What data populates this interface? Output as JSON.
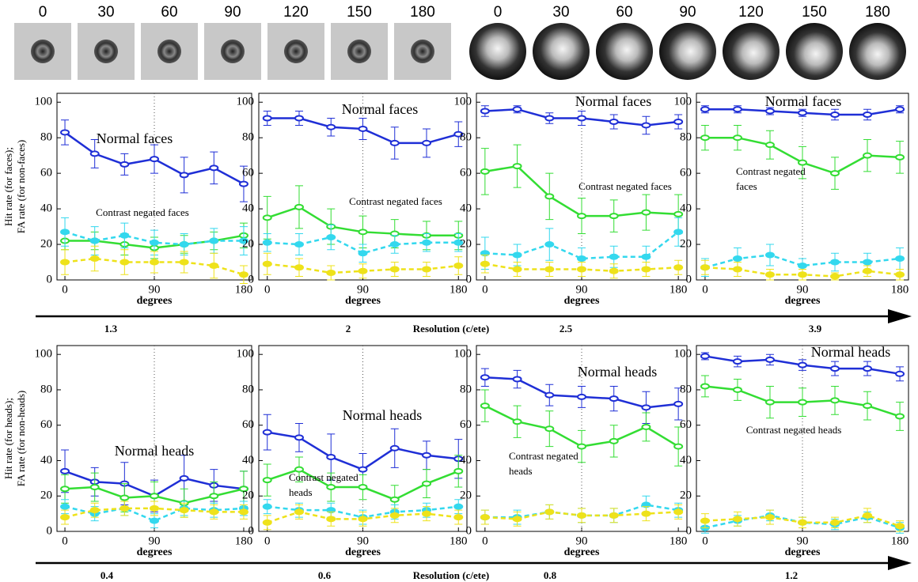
{
  "stimulus_rows": [
    [
      0,
      30,
      60,
      90,
      120,
      150,
      180
    ],
    [
      0,
      30,
      60,
      90,
      120,
      150,
      180
    ]
  ],
  "resolution_axes": [
    {
      "label": "Resolution (c/ete)",
      "values": [
        1.3,
        2,
        2.5,
        3.9
      ]
    },
    {
      "label": "Resolution (c/ete)",
      "values": [
        0.4,
        0.6,
        0.8,
        1.2
      ]
    }
  ],
  "chart_data": [
    {
      "type": "line",
      "ylabel": [
        "Hit rate (for faces);",
        "FA rate (for non-faces)"
      ],
      "xlabel": "degrees",
      "annotations": [
        [
          "Normal faces"
        ],
        [
          "Contrast negated faces"
        ]
      ],
      "x": [
        0,
        30,
        60,
        90,
        120,
        150,
        180
      ],
      "xlim": [
        -8,
        188
      ],
      "ylim": [
        0,
        105
      ],
      "xticks": [
        0,
        90,
        180
      ],
      "yticks": [
        0,
        20,
        40,
        60,
        80,
        100
      ],
      "grid": true,
      "series": [
        {
          "color": "#1f2fd6",
          "dash": false,
          "values": [
            83,
            71,
            65,
            68,
            59,
            63,
            54
          ],
          "errors": [
            7,
            8,
            6,
            8,
            10,
            9,
            10
          ]
        },
        {
          "color": "#33dd33",
          "dash": false,
          "values": [
            22,
            22,
            20,
            18,
            20,
            22,
            25
          ],
          "errors": [
            5,
            5,
            6,
            6,
            5,
            5,
            7
          ]
        },
        {
          "color": "#33d8ee",
          "dash": true,
          "values": [
            27,
            22,
            25,
            21,
            20,
            22,
            22
          ],
          "errors": [
            8,
            8,
            7,
            7,
            6,
            7,
            8
          ]
        },
        {
          "color": "#eee21a",
          "dash": true,
          "values": [
            10,
            12,
            10,
            10,
            10,
            8,
            3
          ],
          "errors": [
            7,
            7,
            7,
            6,
            6,
            7,
            5
          ]
        }
      ]
    },
    {
      "type": "line",
      "xlabel": "degrees",
      "annotations": [
        [
          "Normal faces"
        ],
        [
          "Contrast negated faces"
        ]
      ],
      "x": [
        0,
        30,
        60,
        90,
        120,
        150,
        180
      ],
      "xlim": [
        -8,
        188
      ],
      "ylim": [
        0,
        105
      ],
      "xticks": [
        0,
        90,
        180
      ],
      "yticks": [
        0,
        20,
        40,
        60,
        80,
        100
      ],
      "grid": true,
      "series": [
        {
          "color": "#1f2fd6",
          "dash": false,
          "values": [
            91,
            91,
            86,
            85,
            77,
            77,
            82
          ],
          "errors": [
            4,
            4,
            5,
            6,
            9,
            8,
            7
          ]
        },
        {
          "color": "#33dd33",
          "dash": false,
          "values": [
            35,
            41,
            30,
            27,
            26,
            25,
            25
          ],
          "errors": [
            12,
            12,
            10,
            9,
            8,
            8,
            8
          ]
        },
        {
          "color": "#33d8ee",
          "dash": true,
          "values": [
            21,
            20,
            24,
            15,
            20,
            21,
            21
          ],
          "errors": [
            5,
            6,
            7,
            5,
            5,
            5,
            5
          ]
        },
        {
          "color": "#eee21a",
          "dash": true,
          "values": [
            9,
            7,
            4,
            5,
            6,
            6,
            8
          ],
          "errors": [
            6,
            5,
            4,
            4,
            4,
            4,
            5
          ]
        }
      ]
    },
    {
      "type": "line",
      "xlabel": "degrees",
      "annotations": [
        [
          "Normal faces"
        ],
        [
          "Contrast negated faces"
        ]
      ],
      "x": [
        0,
        30,
        60,
        90,
        120,
        150,
        180
      ],
      "xlim": [
        -8,
        188
      ],
      "ylim": [
        0,
        105
      ],
      "xticks": [
        0,
        90,
        180
      ],
      "yticks": [
        0,
        20,
        40,
        60,
        80,
        100
      ],
      "grid": true,
      "series": [
        {
          "color": "#1f2fd6",
          "dash": false,
          "values": [
            95,
            96,
            91,
            91,
            89,
            87,
            89
          ],
          "errors": [
            3,
            2,
            3,
            4,
            4,
            5,
            4
          ]
        },
        {
          "color": "#33dd33",
          "dash": false,
          "values": [
            61,
            64,
            47,
            36,
            36,
            38,
            37
          ],
          "errors": [
            13,
            12,
            13,
            10,
            9,
            10,
            11
          ]
        },
        {
          "color": "#33d8ee",
          "dash": true,
          "values": [
            15,
            14,
            20,
            12,
            13,
            13,
            27
          ],
          "errors": [
            9,
            6,
            9,
            6,
            6,
            6,
            8
          ]
        },
        {
          "color": "#eee21a",
          "dash": true,
          "values": [
            9,
            6,
            6,
            6,
            5,
            6,
            7
          ],
          "errors": [
            5,
            4,
            4,
            4,
            4,
            4,
            4
          ]
        }
      ]
    },
    {
      "type": "line",
      "xlabel": "degrees",
      "annotations": [
        [
          "Normal faces"
        ],
        [
          "Contrast negated",
          "faces"
        ]
      ],
      "x": [
        0,
        30,
        60,
        90,
        120,
        150,
        180
      ],
      "xlim": [
        -8,
        188
      ],
      "ylim": [
        0,
        105
      ],
      "xticks": [
        0,
        90,
        180
      ],
      "yticks": [
        0,
        20,
        40,
        60,
        80,
        100
      ],
      "grid": true,
      "series": [
        {
          "color": "#1f2fd6",
          "dash": false,
          "values": [
            96,
            96,
            95,
            94,
            93,
            93,
            96
          ],
          "errors": [
            2,
            2,
            2,
            2,
            3,
            3,
            2
          ]
        },
        {
          "color": "#33dd33",
          "dash": false,
          "values": [
            80,
            80,
            76,
            66,
            60,
            70,
            69
          ],
          "errors": [
            7,
            7,
            8,
            9,
            9,
            9,
            9
          ]
        },
        {
          "color": "#33d8ee",
          "dash": true,
          "values": [
            7,
            12,
            14,
            8,
            10,
            10,
            12
          ],
          "errors": [
            5,
            6,
            6,
            4,
            5,
            5,
            6
          ]
        },
        {
          "color": "#eee21a",
          "dash": true,
          "values": [
            7,
            6,
            3,
            3,
            2,
            5,
            3
          ],
          "errors": [
            4,
            4,
            3,
            3,
            2,
            3,
            3
          ]
        }
      ]
    },
    {
      "type": "line",
      "ylabel": [
        "Hit rate (for heads);",
        "FA rate (for non-heads)"
      ],
      "xlabel": "degrees",
      "annotations": [
        [
          "Normal heads"
        ]
      ],
      "x": [
        0,
        30,
        60,
        90,
        120,
        150,
        180
      ],
      "xlim": [
        -8,
        188
      ],
      "ylim": [
        0,
        105
      ],
      "xticks": [
        0,
        90,
        180
      ],
      "yticks": [
        0,
        20,
        40,
        60,
        80,
        100
      ],
      "grid": true,
      "series": [
        {
          "color": "#1f2fd6",
          "dash": false,
          "values": [
            34,
            28,
            27,
            20,
            30,
            26,
            24
          ],
          "errors": [
            12,
            8,
            12,
            9,
            13,
            9,
            10
          ]
        },
        {
          "color": "#33dd33",
          "dash": false,
          "values": [
            24,
            25,
            19,
            20,
            16,
            20,
            24
          ],
          "errors": [
            8,
            8,
            8,
            8,
            8,
            8,
            10
          ]
        },
        {
          "color": "#33d8ee",
          "dash": true,
          "values": [
            14,
            10,
            13,
            6,
            13,
            12,
            13
          ],
          "errors": [
            4,
            4,
            4,
            4,
            4,
            4,
            4
          ]
        },
        {
          "color": "#eee21a",
          "dash": true,
          "values": [
            8,
            12,
            13,
            13,
            12,
            11,
            11
          ],
          "errors": [
            4,
            4,
            4,
            4,
            4,
            4,
            4
          ]
        }
      ]
    },
    {
      "type": "line",
      "xlabel": "degrees",
      "annotations": [
        [
          "Normal heads"
        ],
        [
          "Contrast negated",
          "heads"
        ]
      ],
      "x": [
        0,
        30,
        60,
        90,
        120,
        150,
        180
      ],
      "xlim": [
        -8,
        188
      ],
      "ylim": [
        0,
        105
      ],
      "xticks": [
        0,
        90,
        180
      ],
      "yticks": [
        0,
        20,
        40,
        60,
        80,
        100
      ],
      "grid": true,
      "series": [
        {
          "color": "#1f2fd6",
          "dash": false,
          "values": [
            56,
            53,
            42,
            35,
            47,
            43,
            41
          ],
          "errors": [
            10,
            8,
            13,
            9,
            11,
            8,
            11
          ]
        },
        {
          "color": "#33dd33",
          "dash": false,
          "values": [
            29,
            35,
            25,
            25,
            18,
            27,
            34
          ],
          "errors": [
            9,
            7,
            8,
            7,
            8,
            8,
            9
          ]
        },
        {
          "color": "#33d8ee",
          "dash": true,
          "values": [
            14,
            12,
            12,
            8,
            11,
            12,
            14
          ],
          "errors": [
            4,
            4,
            4,
            4,
            4,
            4,
            4
          ]
        },
        {
          "color": "#eee21a",
          "dash": true,
          "values": [
            5,
            11,
            7,
            7,
            9,
            10,
            8
          ],
          "errors": [
            4,
            4,
            4,
            4,
            4,
            4,
            4
          ]
        }
      ]
    },
    {
      "type": "line",
      "xlabel": "degrees",
      "annotations": [
        [
          "Normal heads"
        ],
        [
          "Contrast negated",
          "heads"
        ]
      ],
      "x": [
        0,
        30,
        60,
        90,
        120,
        150,
        180
      ],
      "xlim": [
        -8,
        188
      ],
      "ylim": [
        0,
        105
      ],
      "xticks": [
        0,
        90,
        180
      ],
      "yticks": [
        0,
        20,
        40,
        60,
        80,
        100
      ],
      "grid": true,
      "series": [
        {
          "color": "#1f2fd6",
          "dash": false,
          "values": [
            87,
            86,
            77,
            76,
            75,
            70,
            72
          ],
          "errors": [
            5,
            5,
            6,
            6,
            7,
            9,
            9
          ]
        },
        {
          "color": "#33dd33",
          "dash": false,
          "values": [
            71,
            62,
            58,
            48,
            51,
            59,
            48
          ],
          "errors": [
            9,
            9,
            10,
            9,
            9,
            8,
            11
          ]
        },
        {
          "color": "#33d8ee",
          "dash": true,
          "values": [
            8,
            8,
            11,
            9,
            9,
            15,
            12
          ],
          "errors": [
            4,
            4,
            4,
            4,
            4,
            5,
            4
          ]
        },
        {
          "color": "#eee21a",
          "dash": true,
          "values": [
            8,
            7,
            11,
            9,
            9,
            10,
            11
          ],
          "errors": [
            4,
            4,
            4,
            4,
            4,
            4,
            4
          ]
        }
      ]
    },
    {
      "type": "line",
      "xlabel": "degrees",
      "annotations": [
        [
          "Normal heads"
        ],
        [
          "Contrast negated heads"
        ]
      ],
      "x": [
        0,
        30,
        60,
        90,
        120,
        150,
        180
      ],
      "xlim": [
        -8,
        188
      ],
      "ylim": [
        0,
        105
      ],
      "xticks": [
        0,
        90,
        180
      ],
      "yticks": [
        0,
        20,
        40,
        60,
        80,
        100
      ],
      "grid": true,
      "series": [
        {
          "color": "#1f2fd6",
          "dash": false,
          "values": [
            99,
            96,
            97,
            94,
            92,
            92,
            89
          ],
          "errors": [
            2,
            3,
            3,
            3,
            4,
            4,
            4
          ]
        },
        {
          "color": "#33dd33",
          "dash": false,
          "values": [
            82,
            80,
            73,
            73,
            74,
            71,
            65
          ],
          "errors": [
            6,
            6,
            9,
            8,
            8,
            8,
            8
          ]
        },
        {
          "color": "#33d8ee",
          "dash": true,
          "values": [
            2,
            6,
            9,
            5,
            4,
            8,
            2
          ],
          "errors": [
            3,
            3,
            3,
            3,
            3,
            3,
            3
          ]
        },
        {
          "color": "#eee21a",
          "dash": true,
          "values": [
            6,
            7,
            8,
            5,
            5,
            9,
            3
          ],
          "errors": [
            4,
            4,
            4,
            3,
            3,
            4,
            3
          ]
        }
      ]
    }
  ]
}
